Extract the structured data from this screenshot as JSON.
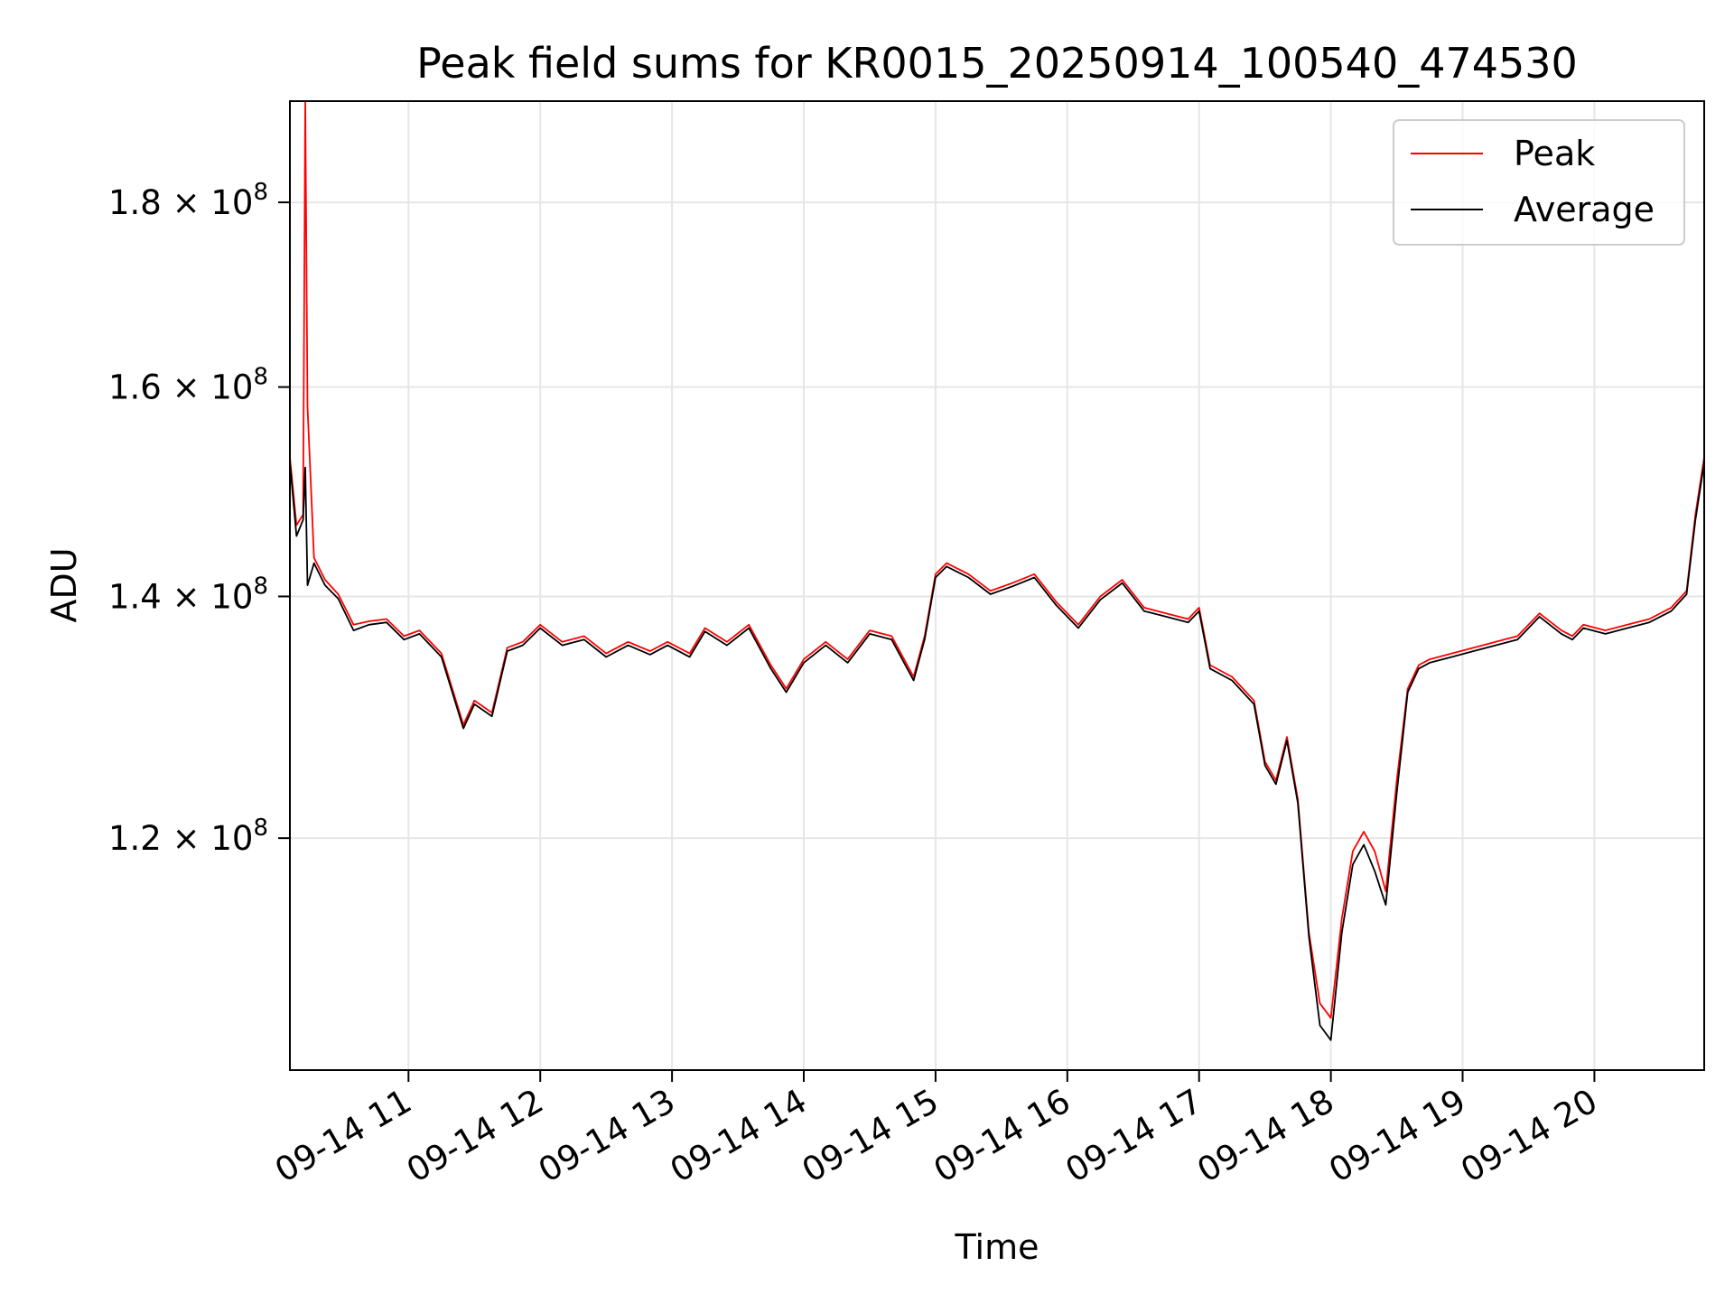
{
  "chart_data": {
    "type": "line",
    "title": "Peak field sums for KR0015_20250914_100540_474530",
    "xlabel": "Time",
    "ylabel": "ADU",
    "y_scale": "log",
    "x_range": [
      "09-14 10:06",
      "09-14 20:50"
    ],
    "ylim": [
      103500000,
      192000000
    ],
    "x_ticks": [
      "09-14 11",
      "09-14 12",
      "09-14 13",
      "09-14 14",
      "09-14 15",
      "09-14 16",
      "09-14 17",
      "09-14 18",
      "09-14 19",
      "09-14 20"
    ],
    "y_ticks": [
      {
        "value": 120000000,
        "mantissa": "1.2",
        "base": "10",
        "exponent": "8"
      },
      {
        "value": 140000000,
        "mantissa": "1.4",
        "base": "10",
        "exponent": "8"
      },
      {
        "value": 160000000,
        "mantissa": "1.6",
        "base": "10",
        "exponent": "8"
      },
      {
        "value": 180000000,
        "mantissa": "1.8",
        "base": "10",
        "exponent": "8"
      }
    ],
    "grid": true,
    "legend_position": "top-right",
    "series": [
      {
        "name": "Peak",
        "color": "#ff0000",
        "x": [
          "09-14 10:06",
          "09-14 10:09",
          "09-14 10:12",
          "09-14 10:13",
          "09-14 10:14",
          "09-14 10:17",
          "09-14 10:22",
          "09-14 10:28",
          "09-14 10:35",
          "09-14 10:42",
          "09-14 10:50",
          "09-14 10:58",
          "09-14 11:05",
          "09-14 11:15",
          "09-14 11:25",
          "09-14 11:30",
          "09-14 11:38",
          "09-14 11:45",
          "09-14 11:52",
          "09-14 12:00",
          "09-14 12:10",
          "09-14 12:20",
          "09-14 12:30",
          "09-14 12:40",
          "09-14 12:50",
          "09-14 12:58",
          "09-14 13:08",
          "09-14 13:15",
          "09-14 13:25",
          "09-14 13:35",
          "09-14 13:45",
          "09-14 13:52",
          "09-14 14:00",
          "09-14 14:10",
          "09-14 14:20",
          "09-14 14:30",
          "09-14 14:40",
          "09-14 14:50",
          "09-14 14:55",
          "09-14 15:00",
          "09-14 15:05",
          "09-14 15:15",
          "09-14 15:25",
          "09-14 15:35",
          "09-14 15:45",
          "09-14 15:55",
          "09-14 16:05",
          "09-14 16:15",
          "09-14 16:25",
          "09-14 16:35",
          "09-14 16:45",
          "09-14 16:55",
          "09-14 17:00",
          "09-14 17:05",
          "09-14 17:15",
          "09-14 17:25",
          "09-14 17:30",
          "09-14 17:35",
          "09-14 17:40",
          "09-14 17:45",
          "09-14 17:50",
          "09-14 17:55",
          "09-14 18:00",
          "09-14 18:05",
          "09-14 18:10",
          "09-14 18:15",
          "09-14 18:20",
          "09-14 18:25",
          "09-14 18:30",
          "09-14 18:35",
          "09-14 18:40",
          "09-14 18:45",
          "09-14 18:55",
          "09-14 19:05",
          "09-14 19:15",
          "09-14 19:25",
          "09-14 19:35",
          "09-14 19:45",
          "09-14 19:50",
          "09-14 19:55",
          "09-14 20:05",
          "09-14 20:15",
          "09-14 20:25",
          "09-14 20:35",
          "09-14 20:42",
          "09-14 20:46",
          "09-14 20:50"
        ],
        "y": [
          153000000,
          146500000,
          147500000,
          192000000,
          158000000,
          143500000,
          141500000,
          140200000,
          137500000,
          137800000,
          138000000,
          136500000,
          137000000,
          135000000,
          129000000,
          131000000,
          130000000,
          135500000,
          136000000,
          137500000,
          136000000,
          136500000,
          135000000,
          136000000,
          135200000,
          136000000,
          135000000,
          137200000,
          136000000,
          137500000,
          134000000,
          132000000,
          134500000,
          136000000,
          134500000,
          137000000,
          136500000,
          133000000,
          136500000,
          142000000,
          143000000,
          142000000,
          140500000,
          141200000,
          142000000,
          139500000,
          137500000,
          140000000,
          141500000,
          139000000,
          138500000,
          138000000,
          139000000,
          134000000,
          133000000,
          131000000,
          126000000,
          124500000,
          128000000,
          123000000,
          113000000,
          108000000,
          107000000,
          114000000,
          119000000,
          120500000,
          119000000,
          116000000,
          124500000,
          132000000,
          134000000,
          134500000,
          135000000,
          135500000,
          136000000,
          136500000,
          138500000,
          137000000,
          136500000,
          137500000,
          137000000,
          137500000,
          138000000,
          139000000,
          140500000,
          147500000,
          153000000
        ]
      },
      {
        "name": "Average",
        "color": "#000000",
        "x": [
          "09-14 10:06",
          "09-14 10:09",
          "09-14 10:12",
          "09-14 10:13",
          "09-14 10:14",
          "09-14 10:17",
          "09-14 10:22",
          "09-14 10:28",
          "09-14 10:35",
          "09-14 10:42",
          "09-14 10:50",
          "09-14 10:58",
          "09-14 11:05",
          "09-14 11:15",
          "09-14 11:25",
          "09-14 11:30",
          "09-14 11:38",
          "09-14 11:45",
          "09-14 11:52",
          "09-14 12:00",
          "09-14 12:10",
          "09-14 12:20",
          "09-14 12:30",
          "09-14 12:40",
          "09-14 12:50",
          "09-14 12:58",
          "09-14 13:08",
          "09-14 13:15",
          "09-14 13:25",
          "09-14 13:35",
          "09-14 13:45",
          "09-14 13:52",
          "09-14 14:00",
          "09-14 14:10",
          "09-14 14:20",
          "09-14 14:30",
          "09-14 14:40",
          "09-14 14:50",
          "09-14 14:55",
          "09-14 15:00",
          "09-14 15:05",
          "09-14 15:15",
          "09-14 15:25",
          "09-14 15:35",
          "09-14 15:45",
          "09-14 15:55",
          "09-14 16:05",
          "09-14 16:15",
          "09-14 16:25",
          "09-14 16:35",
          "09-14 16:45",
          "09-14 16:55",
          "09-14 17:00",
          "09-14 17:05",
          "09-14 17:15",
          "09-14 17:25",
          "09-14 17:30",
          "09-14 17:35",
          "09-14 17:40",
          "09-14 17:45",
          "09-14 17:50",
          "09-14 17:55",
          "09-14 18:00",
          "09-14 18:05",
          "09-14 18:10",
          "09-14 18:15",
          "09-14 18:20",
          "09-14 18:25",
          "09-14 18:30",
          "09-14 18:35",
          "09-14 18:40",
          "09-14 18:45",
          "09-14 18:55",
          "09-14 19:05",
          "09-14 19:15",
          "09-14 19:25",
          "09-14 19:35",
          "09-14 19:45",
          "09-14 19:50",
          "09-14 19:55",
          "09-14 20:05",
          "09-14 20:15",
          "09-14 20:25",
          "09-14 20:35",
          "09-14 20:42",
          "09-14 20:46",
          "09-14 20:50"
        ],
        "y": [
          152500000,
          145500000,
          147000000,
          152000000,
          141000000,
          143000000,
          141000000,
          139800000,
          137000000,
          137500000,
          137700000,
          136200000,
          136700000,
          134700000,
          128700000,
          130700000,
          129700000,
          135200000,
          135700000,
          137200000,
          135700000,
          136200000,
          134700000,
          135700000,
          134900000,
          135700000,
          134700000,
          136900000,
          135700000,
          137200000,
          133700000,
          131700000,
          134200000,
          135700000,
          134200000,
          136700000,
          136200000,
          132700000,
          136200000,
          141700000,
          142700000,
          141700000,
          140200000,
          140900000,
          141700000,
          139200000,
          137200000,
          139700000,
          141200000,
          138700000,
          138200000,
          137700000,
          138700000,
          133700000,
          132700000,
          130700000,
          125700000,
          124200000,
          127700000,
          122700000,
          112700000,
          106500000,
          105500000,
          113000000,
          118000000,
          119500000,
          117500000,
          115000000,
          123500000,
          131700000,
          133700000,
          134200000,
          134700000,
          135200000,
          135700000,
          136200000,
          138200000,
          136700000,
          136200000,
          137200000,
          136700000,
          137200000,
          137700000,
          138700000,
          140200000,
          147000000,
          152500000
        ]
      }
    ]
  }
}
